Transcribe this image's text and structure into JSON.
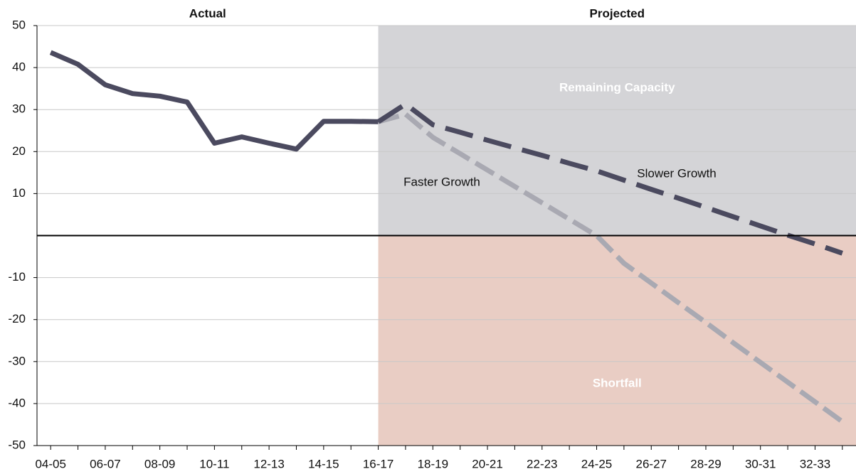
{
  "chart_data": {
    "type": "line",
    "section_labels": [
      "Actual",
      "Projected"
    ],
    "region_labels": [
      "Remaining Capacity",
      "Shortfall"
    ],
    "capacity_color": "#d4d4d7",
    "shortfall_color": "#e9cdc4",
    "categories": [
      "04-05",
      null,
      "06-07",
      null,
      "08-09",
      null,
      "10-11",
      null,
      "12-13",
      null,
      "14-15",
      null,
      "16-17",
      null,
      "18-19",
      null,
      "20-21",
      null,
      "22-23",
      null,
      "24-25",
      null,
      "26-27",
      null,
      "28-29",
      null,
      "30-31",
      null,
      "32-33",
      null
    ],
    "series": [
      {
        "name": "Actual",
        "color": "#4b4a5f",
        "dashed": false,
        "values": [
          43.6,
          40.8,
          35.9,
          33.8,
          33.2,
          31.8,
          22,
          23.5,
          22,
          20.6,
          27.2,
          27.2,
          27.1,
          null,
          null,
          null,
          null,
          null,
          null,
          null,
          null,
          null,
          null,
          null,
          null,
          null,
          null,
          null,
          null,
          null
        ]
      },
      {
        "name": "Slower Growth",
        "color": "#4b4a5f",
        "dashed": true,
        "values": [
          null,
          null,
          null,
          null,
          null,
          null,
          null,
          null,
          null,
          null,
          null,
          null,
          27.1,
          31.3,
          26.4,
          24.6,
          22.7,
          20.9,
          19.1,
          17.2,
          15.4,
          13.2,
          11.0,
          8.9,
          6.7,
          4.5,
          2.3,
          0.1,
          -2.0,
          -4.2
        ]
      },
      {
        "name": "Faster Growth",
        "color": "#a9a9b2",
        "dashed": true,
        "values": [
          null,
          null,
          null,
          null,
          null,
          null,
          null,
          null,
          null,
          null,
          null,
          null,
          27.1,
          28.9,
          23.4,
          19.5,
          15.6,
          11.7,
          7.8,
          3.9,
          0,
          -6.6,
          -11.3,
          -16.0,
          -20.7,
          -25.5,
          -30.2,
          -34.9,
          -39.6,
          -44.3
        ]
      }
    ],
    "ylim": [
      -50,
      50
    ],
    "yticks": [
      50,
      40,
      30,
      20,
      10,
      -10,
      -20,
      -30,
      -40,
      -50
    ],
    "grid": true
  }
}
